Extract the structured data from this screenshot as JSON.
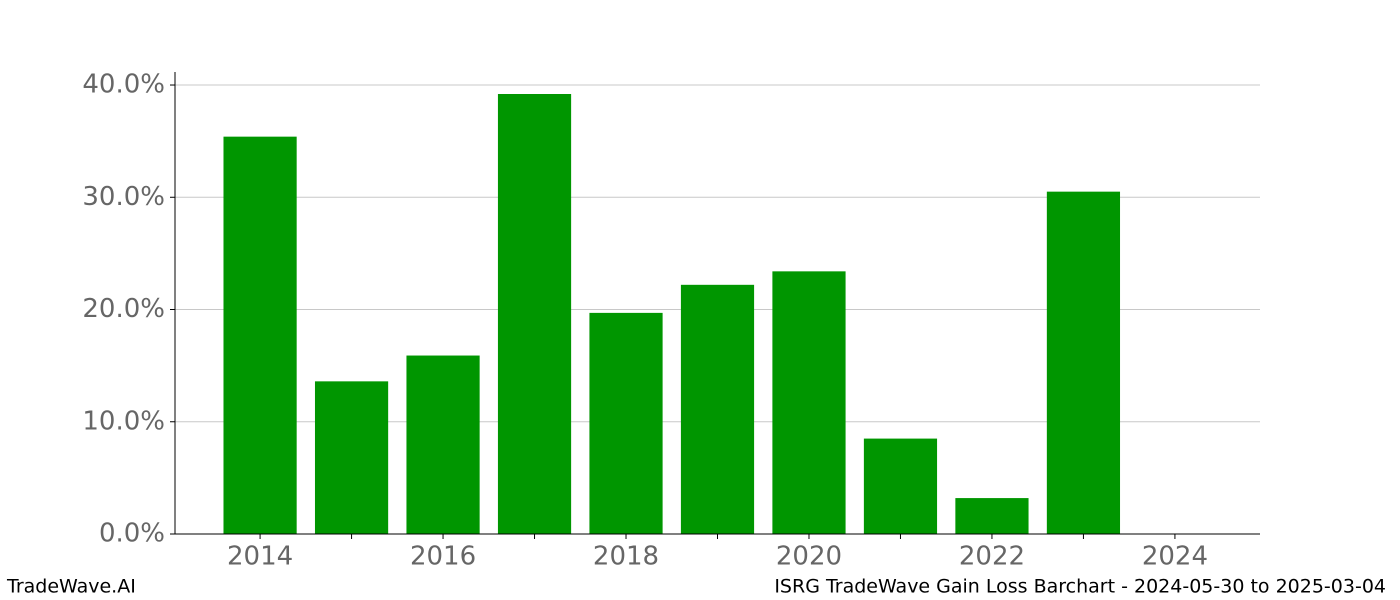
{
  "chart_data": {
    "type": "bar",
    "title": "ISRG TradeWave Gain Loss Barchart - 2024-05-30 to 2025-03-04",
    "source": "TradeWave.AI",
    "x": [
      2014,
      2015,
      2016,
      2017,
      2018,
      2019,
      2020,
      2021,
      2022,
      2023
    ],
    "values": [
      35.4,
      13.6,
      15.9,
      39.2,
      19.7,
      22.2,
      23.4,
      8.5,
      3.2,
      30.5
    ],
    "color": "#009600",
    "xlim": [
      2013.07,
      2024.93
    ],
    "xticks": [
      2014,
      2016,
      2018,
      2020,
      2022,
      2024
    ],
    "xminorticks": [
      2015,
      2017,
      2019,
      2021,
      2023
    ],
    "ylim": [
      0,
      41.16
    ],
    "yticks": [
      {
        "value": 0,
        "label": "0.0%"
      },
      {
        "value": 10,
        "label": "10.0%"
      },
      {
        "value": 20,
        "label": "20.0%"
      },
      {
        "value": 30,
        "label": "30.0%"
      },
      {
        "value": 40,
        "label": "40.0%"
      }
    ],
    "grid": true
  }
}
